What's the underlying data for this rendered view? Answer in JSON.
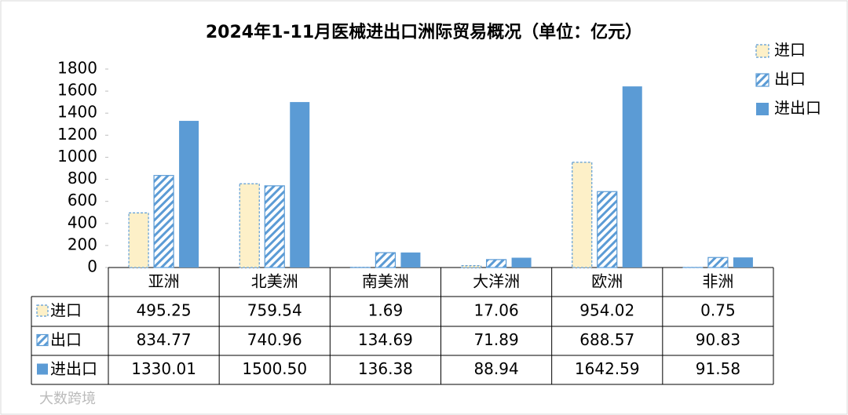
{
  "chart_data": {
    "type": "bar",
    "title": "2024年1-11月医械进出口洲际贸易概况（单位：亿元）",
    "categories": [
      "亚洲",
      "北美洲",
      "南美洲",
      "大洋洲",
      "欧洲",
      "非洲"
    ],
    "series": [
      {
        "name": "进口",
        "color": "#fdf0c8",
        "values": [
          495.25,
          759.54,
          1.69,
          17.06,
          954.02,
          0.75
        ],
        "value_labels": [
          "495.25",
          "759.54",
          "1.69",
          "17.06",
          "954.02",
          "0.75"
        ]
      },
      {
        "name": "出口",
        "color": "#5b9bd5",
        "values": [
          834.77,
          740.96,
          134.69,
          71.89,
          688.57,
          90.83
        ],
        "value_labels": [
          "834.77",
          "740.96",
          "134.69",
          "71.89",
          "688.57",
          "90.83"
        ]
      },
      {
        "name": "进出口",
        "color": "#5b9bd5",
        "values": [
          1330.01,
          1500.5,
          136.38,
          88.94,
          1642.59,
          91.58
        ],
        "value_labels": [
          "1330.01",
          "1500.50",
          "136.38",
          "88.94",
          "1642.59",
          "91.58"
        ]
      }
    ],
    "ylim": [
      0,
      1800
    ],
    "yticks": [
      0,
      200,
      400,
      600,
      800,
      1000,
      1200,
      1400,
      1600,
      1800
    ],
    "grid": false,
    "legend": "right",
    "watermark": "大数跨境"
  }
}
